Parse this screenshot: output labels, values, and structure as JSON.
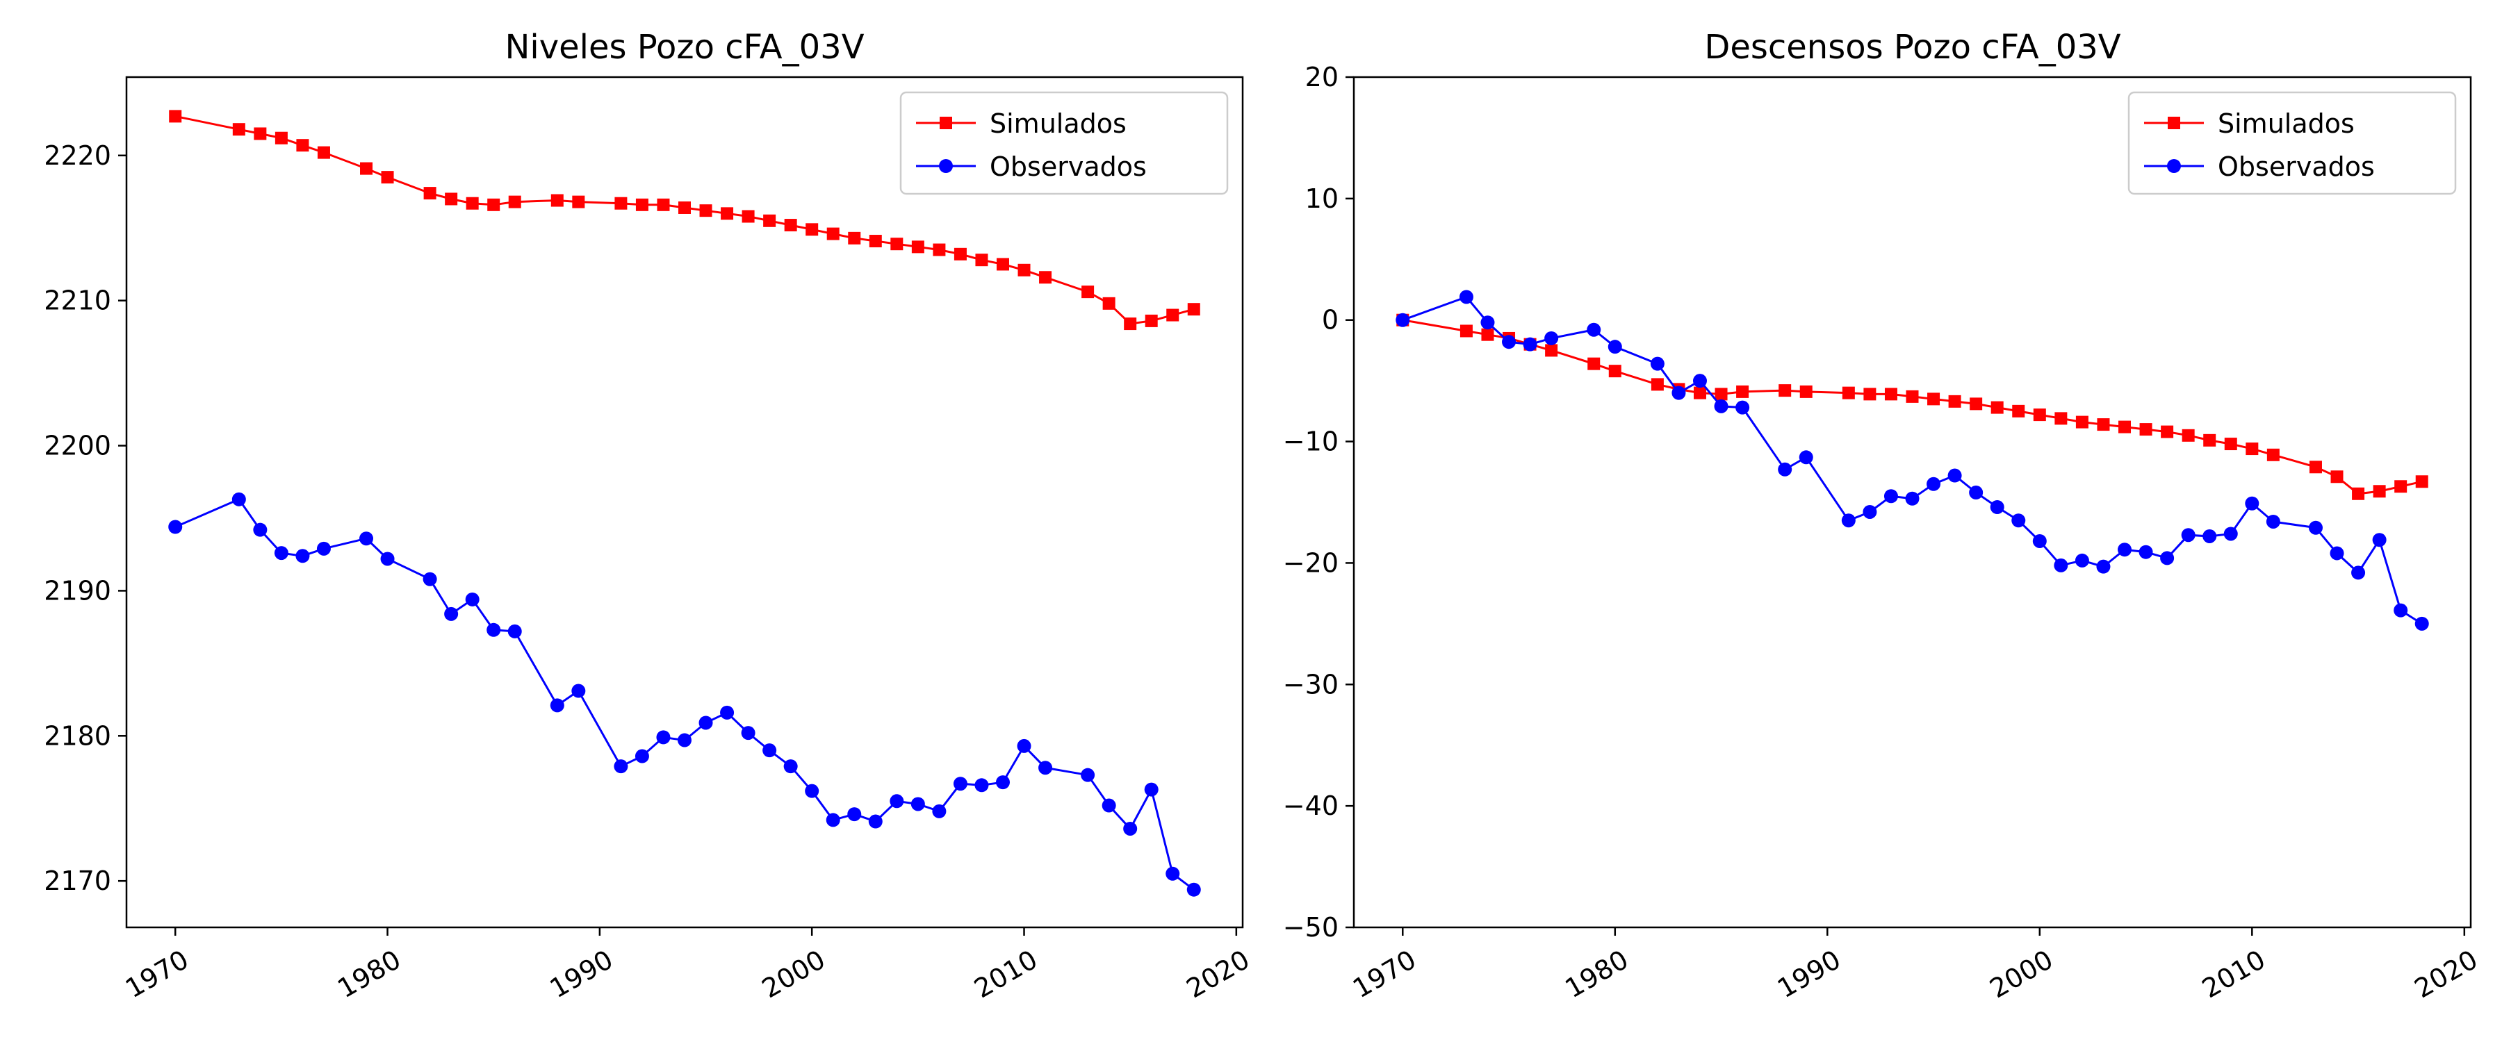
{
  "chart_data": [
    {
      "type": "line",
      "title": "Niveles Pozo cFA_03V",
      "xlabel": "",
      "ylabel": "",
      "xlim": [
        1967.7,
        2020.3
      ],
      "ylim": [
        2166.8,
        2225.4
      ],
      "xticks": [
        1970,
        1980,
        1990,
        2000,
        2010,
        2020
      ],
      "yticks": [
        2170,
        2180,
        2190,
        2200,
        2210,
        2220
      ],
      "legend": "top-right",
      "grid": false,
      "series": [
        {
          "name": "Simulados",
          "color": "#ff0000",
          "marker": "square",
          "x": [
            1970,
            1973,
            1974,
            1975,
            1976,
            1977,
            1979,
            1980,
            1982,
            1983,
            1984,
            1985,
            1986,
            1988,
            1989,
            1991,
            1992,
            1993,
            1994,
            1995,
            1996,
            1997,
            1998,
            1999,
            2000,
            2001,
            2002,
            2003,
            2004,
            2005,
            2006,
            2007,
            2008,
            2009,
            2010,
            2011,
            2013,
            2014,
            2015,
            2016,
            2017,
            2018
          ],
          "y": [
            2222.7,
            2221.8,
            2221.5,
            2221.2,
            2220.7,
            2220.2,
            2219.1,
            2218.5,
            2217.4,
            2217.0,
            2216.7,
            2216.6,
            2216.8,
            2216.9,
            2216.8,
            2216.7,
            2216.6,
            2216.6,
            2216.4,
            2216.2,
            2216.0,
            2215.8,
            2215.5,
            2215.2,
            2214.9,
            2214.6,
            2214.3,
            2214.1,
            2213.9,
            2213.7,
            2213.5,
            2213.2,
            2212.8,
            2212.5,
            2212.1,
            2211.6,
            2210.6,
            2209.8,
            2208.4,
            2208.6,
            2209.0,
            2209.4
          ]
        },
        {
          "name": "Observados",
          "color": "#0000ff",
          "marker": "circle",
          "x": [
            1970,
            1973,
            1974,
            1975,
            1976,
            1977,
            1979,
            1980,
            1982,
            1983,
            1984,
            1985,
            1986,
            1988,
            1989,
            1991,
            1992,
            1993,
            1994,
            1995,
            1996,
            1997,
            1998,
            1999,
            2000,
            2001,
            2002,
            2003,
            2004,
            2005,
            2006,
            2007,
            2008,
            2009,
            2010,
            2011,
            2013,
            2014,
            2015,
            2016,
            2017,
            2018
          ],
          "y": [
            2194.4,
            2196.3,
            2194.2,
            2192.6,
            2192.4,
            2192.9,
            2193.6,
            2192.2,
            2190.8,
            2188.4,
            2189.4,
            2187.3,
            2187.2,
            2182.1,
            2183.1,
            2177.9,
            2178.6,
            2179.9,
            2179.7,
            2180.9,
            2181.6,
            2180.2,
            2179.0,
            2177.9,
            2176.2,
            2174.2,
            2174.6,
            2174.1,
            2175.5,
            2175.3,
            2174.8,
            2176.7,
            2176.6,
            2176.8,
            2179.3,
            2177.8,
            2177.3,
            2175.2,
            2173.6,
            2176.3,
            2170.5,
            2169.4
          ]
        }
      ]
    },
    {
      "type": "line",
      "title": "Descensos Pozo cFA_03V",
      "xlabel": "",
      "ylabel": "",
      "xlim": [
        1967.7,
        2020.3
      ],
      "ylim": [
        -50,
        20
      ],
      "xticks": [
        1970,
        1980,
        1990,
        2000,
        2010,
        2020
      ],
      "yticks": [
        -50,
        -40,
        -30,
        -20,
        -10,
        0,
        10,
        20
      ],
      "legend": "top-right",
      "grid": false,
      "series": [
        {
          "name": "Simulados",
          "color": "#ff0000",
          "marker": "square",
          "x": [
            1970,
            1973,
            1974,
            1975,
            1976,
            1977,
            1979,
            1980,
            1982,
            1983,
            1984,
            1985,
            1986,
            1988,
            1989,
            1991,
            1992,
            1993,
            1994,
            1995,
            1996,
            1997,
            1998,
            1999,
            2000,
            2001,
            2002,
            2003,
            2004,
            2005,
            2006,
            2007,
            2008,
            2009,
            2010,
            2011,
            2013,
            2014,
            2015,
            2016,
            2017,
            2018
          ],
          "y": [
            0.0,
            -0.9,
            -1.2,
            -1.5,
            -2.0,
            -2.5,
            -3.6,
            -4.2,
            -5.3,
            -5.7,
            -6.0,
            -6.1,
            -5.9,
            -5.8,
            -5.9,
            -6.0,
            -6.1,
            -6.1,
            -6.3,
            -6.5,
            -6.7,
            -6.9,
            -7.2,
            -7.5,
            -7.8,
            -8.1,
            -8.4,
            -8.6,
            -8.8,
            -9.0,
            -9.2,
            -9.5,
            -9.9,
            -10.2,
            -10.6,
            -11.1,
            -12.1,
            -12.9,
            -14.3,
            -14.1,
            -13.7,
            -13.3
          ]
        },
        {
          "name": "Observados",
          "color": "#0000ff",
          "marker": "circle",
          "x": [
            1970,
            1973,
            1974,
            1975,
            1976,
            1977,
            1979,
            1980,
            1982,
            1983,
            1984,
            1985,
            1986,
            1988,
            1989,
            1991,
            1992,
            1993,
            1994,
            1995,
            1996,
            1997,
            1998,
            1999,
            2000,
            2001,
            2002,
            2003,
            2004,
            2005,
            2006,
            2007,
            2008,
            2009,
            2010,
            2011,
            2013,
            2014,
            2015,
            2016,
            2017,
            2018
          ],
          "y": [
            0.0,
            1.9,
            -0.2,
            -1.8,
            -2.0,
            -1.5,
            -0.8,
            -2.2,
            -3.6,
            -6.0,
            -5.0,
            -7.1,
            -7.2,
            -12.3,
            -11.3,
            -16.5,
            -15.8,
            -14.5,
            -14.7,
            -13.5,
            -12.8,
            -14.2,
            -15.4,
            -16.5,
            -18.2,
            -20.2,
            -19.8,
            -20.3,
            -18.9,
            -19.1,
            -19.6,
            -17.7,
            -17.8,
            -17.6,
            -15.1,
            -16.6,
            -17.1,
            -19.2,
            -20.8,
            -18.1,
            -23.9,
            -25.0
          ]
        }
      ]
    }
  ]
}
